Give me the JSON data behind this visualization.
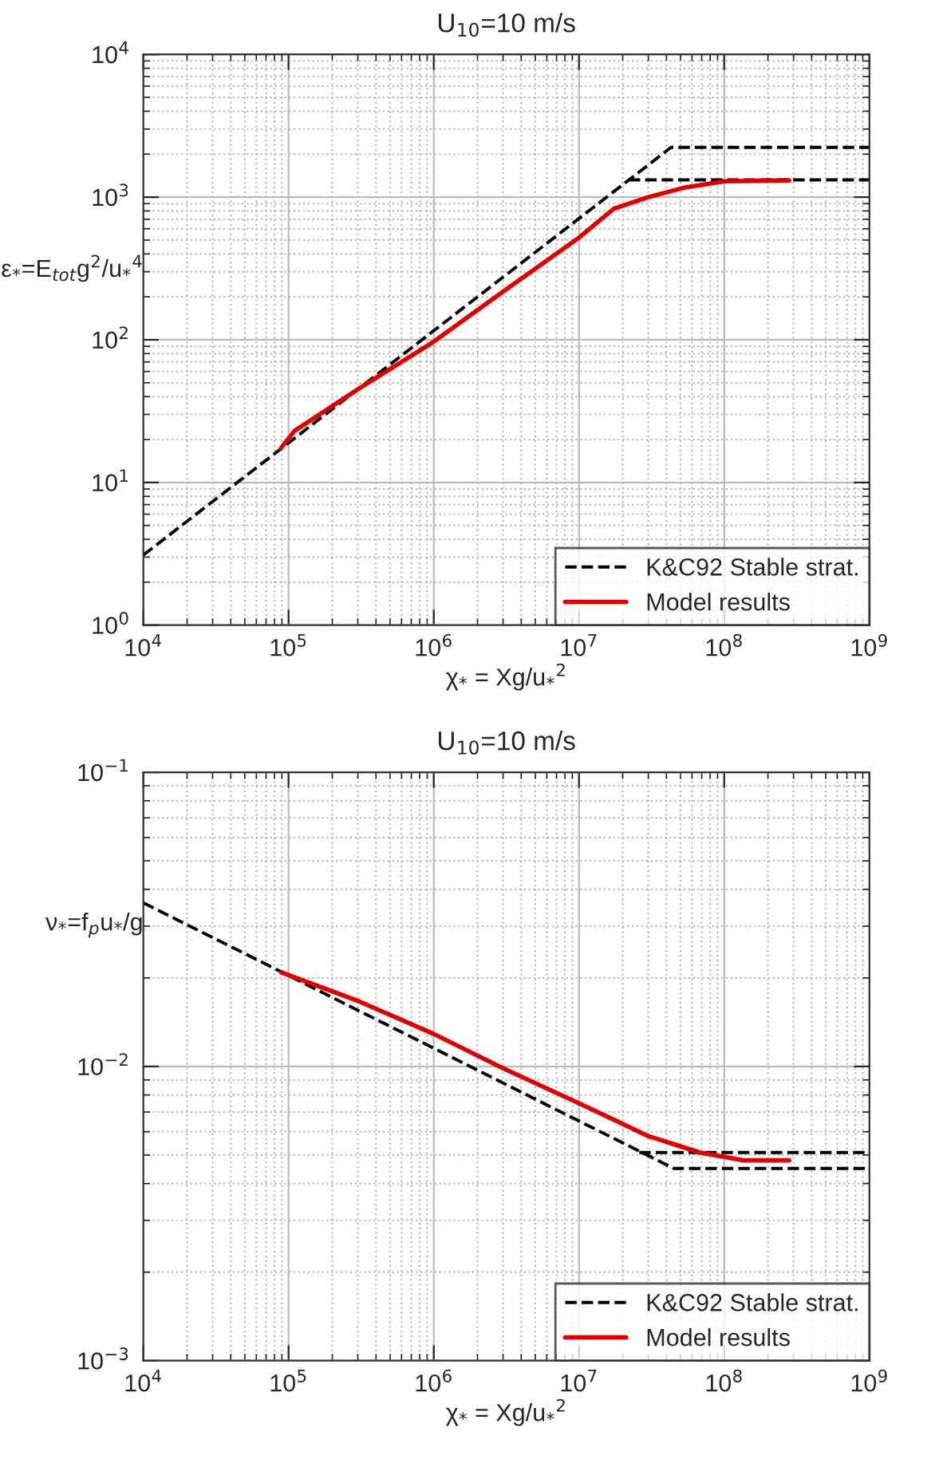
{
  "chart_data": [
    {
      "type": "line",
      "title": "U$_{10}$=10 m/s",
      "xlabel": "χ$_{*}$ = Xg/u$_{*}$$^{2}$",
      "ylabel": "ε$_{*}$=E$_{tot}$g$^{2}$/u$_{*}$$^{4}$",
      "log": "xy",
      "grid": true,
      "legend": "bottom right",
      "marker": "none",
      "xlim": [
        10000,
        1000000000
      ],
      "ylim": [
        1,
        10000
      ],
      "xticks": [
        {
          "value": 10000,
          "label": "10$^{4}$"
        },
        {
          "value": 100000,
          "label": "10$^{5}$"
        },
        {
          "value": 1000000,
          "label": "10$^{6}$"
        },
        {
          "value": 10000000,
          "label": "10$^{7}$"
        },
        {
          "value": 100000000,
          "label": "10$^{8}$"
        },
        {
          "value": 1000000000,
          "label": "10$^{9}$"
        }
      ],
      "yticks": [
        {
          "value": 1,
          "label": "10$^{0}$"
        },
        {
          "value": 10,
          "label": "10$^{1}$"
        },
        {
          "value": 100,
          "label": "10$^{2}$"
        },
        {
          "value": 1000,
          "label": "10$^{3}$"
        },
        {
          "value": 10000,
          "label": "10$^{4}$"
        }
      ],
      "series": [
        {
          "name": "K&C92 Stable strat.",
          "color": "#000000",
          "line_style": "dashed",
          "x": [
            10000,
            43000000,
            1000000000
          ],
          "values": [
            3.1,
            2230,
            2230
          ]
        },
        {
          "color": "#000000",
          "line_style": "dashed",
          "x": [
            22000000,
            1000000000
          ],
          "values": [
            1320,
            1320
          ]
        },
        {
          "name": "Model results",
          "color": "#e00000",
          "line_style": "solid",
          "x": [
            89000,
            110000,
            310000,
            1000000,
            2950000,
            10000000,
            17400000,
            30000000,
            54000000,
            100000000,
            280000000
          ],
          "values": [
            17.5,
            23,
            46,
            97,
            215,
            520,
            830,
            1000,
            1170,
            1290,
            1310
          ]
        }
      ]
    },
    {
      "type": "line",
      "title": "U$_{10}$=10 m/s",
      "xlabel": "χ$_{*}$ = Xg/u$_{*}$$^{2}$",
      "ylabel": "ν$_{*}$=f$_{p}$u$_{*}$/g",
      "log": "xy",
      "grid": true,
      "legend": "bottom right",
      "marker": "none",
      "xlim": [
        10000,
        1000000000
      ],
      "ylim": [
        0.001,
        0.1
      ],
      "xticks": [
        {
          "value": 10000,
          "label": "10$^{4}$"
        },
        {
          "value": 100000,
          "label": "10$^{5}$"
        },
        {
          "value": 1000000,
          "label": "10$^{6}$"
        },
        {
          "value": 10000000,
          "label": "10$^{7}$"
        },
        {
          "value": 100000000,
          "label": "10$^{8}$"
        },
        {
          "value": 1000000000,
          "label": "10$^{9}$"
        }
      ],
      "yticks": [
        {
          "value": 0.001,
          "label": "10$^{−3}$"
        },
        {
          "value": 0.01,
          "label": "10$^{−2}$"
        },
        {
          "value": 0.1,
          "label": "10$^{−1}$"
        }
      ],
      "series": [
        {
          "name": "K&C92 Stable strat.",
          "color": "#000000",
          "line_style": "dashed",
          "x": [
            10000,
            45000000,
            1000000000
          ],
          "values": [
            0.036,
            0.0045,
            0.0045
          ]
        },
        {
          "color": "#000000",
          "line_style": "dashed",
          "x": [
            26000000,
            1000000000
          ],
          "values": [
            0.0051,
            0.0051
          ]
        },
        {
          "name": "Model results",
          "color": "#e00000",
          "line_style": "solid",
          "x": [
            89000,
            310000,
            1000000,
            2950000,
            10000000,
            30000000,
            68000000,
            135000000,
            280000000
          ],
          "values": [
            0.0209,
            0.0166,
            0.0129,
            0.0099,
            0.0075,
            0.0058,
            0.0051,
            0.0048,
            0.0048
          ]
        }
      ]
    }
  ]
}
